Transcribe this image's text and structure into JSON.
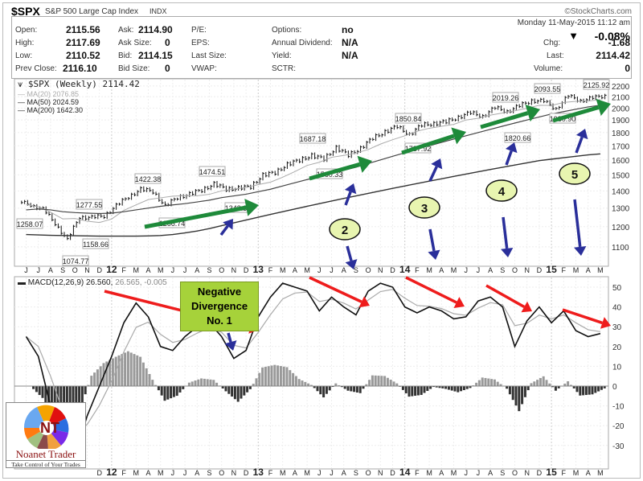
{
  "header": {
    "symbol": "$SPX",
    "name": "S&P 500 Large Cap Index",
    "exchange": "INDX",
    "credit": "©StockCharts.com",
    "datetime": "Monday 11-May-2015 11:12 am",
    "change_pct": "-0.08%",
    "change_direction_icon": "triangle-down-icon"
  },
  "quote": {
    "col1": [
      {
        "label": "Open:",
        "value": "2115.56"
      },
      {
        "label": "High:",
        "value": "2117.69"
      },
      {
        "label": "Low:",
        "value": "2110.52"
      },
      {
        "label": "Prev Close:",
        "value": "2116.10"
      }
    ],
    "col2": [
      {
        "label": "Ask:",
        "value": "2114.90"
      },
      {
        "label": "Ask Size:",
        "value": "0"
      },
      {
        "label": "Bid:",
        "value": "2114.15"
      },
      {
        "label": "Bid Size:",
        "value": "0"
      }
    ],
    "col3": [
      {
        "label": "P/E:"
      },
      {
        "label": "EPS:"
      },
      {
        "label": "Last Size:"
      },
      {
        "label": "VWAP:"
      }
    ],
    "col4": [
      {
        "label": "Options:",
        "value": "no"
      },
      {
        "label": "Annual Dividend:",
        "value": "N/A"
      },
      {
        "label": "Yield:",
        "value": "N/A"
      },
      {
        "label": "SCTR:",
        "value": ""
      }
    ],
    "right": [
      {
        "label": "Chg:",
        "value": "-1.68"
      },
      {
        "label": "Last:",
        "value": "2114.42"
      },
      {
        "label": "Volume:",
        "value": "0"
      }
    ]
  },
  "legend": {
    "price": "$SPX (Weekly) 2114.42",
    "ma20": "MA(20) 2076.85",
    "ma50": "MA(50) 2024.59",
    "ma200": "MA(200) 1642.30",
    "macd": "MACD(12,26,9) 26.560,",
    "macd_signal": "26.565,",
    "macd_hist": "-0.005"
  },
  "annotations": {
    "neg_div_line1": "Negative",
    "neg_div_line2": "Divergence",
    "neg_div_line3": "No. 1",
    "n2": "2",
    "n3": "3",
    "n4": "4",
    "n5": "5",
    "peaks": [
      "1258.07",
      "1277.55",
      "1158.66",
      "1074.77",
      "1422.38",
      "1474.51",
      "1266.74",
      "1343.35",
      "1687.18",
      "1560.33",
      "1850.84",
      "1737.92",
      "2019.26",
      "1820.66",
      "2093.55",
      "1980.90",
      "2125.92"
    ]
  },
  "logo": {
    "name": "Noanet Trader",
    "tagline": "Take Control of Your Trades",
    "initials": "NT"
  },
  "colors": {
    "green_arrow": "#1e8a3a",
    "blue_arrow": "#2a2f9a",
    "red_arrow": "#ee1c1c",
    "callout": "#a6d23a",
    "circle": "#e8f5b0"
  },
  "chart_data": [
    {
      "type": "bar",
      "title": "$SPX (Weekly)",
      "scale": "log",
      "ylim": [
        1020,
        2240
      ],
      "yticks": [
        "2200",
        "2100",
        "2000",
        "1900",
        "1800",
        "1700",
        "1600",
        "1500",
        "1400",
        "1300",
        "1200",
        "1100"
      ],
      "x_labels": [
        "J",
        "J",
        "A",
        "S",
        "O",
        "N",
        "D",
        "12",
        "F",
        "M",
        "A",
        "M",
        "J",
        "J",
        "A",
        "S",
        "O",
        "N",
        "D",
        "13",
        "F",
        "M",
        "A",
        "M",
        "J",
        "J",
        "A",
        "S",
        "O",
        "N",
        "D",
        "14",
        "F",
        "M",
        "A",
        "M",
        "J",
        "J",
        "A",
        "S",
        "O",
        "N",
        "D",
        "15",
        "F",
        "M",
        "A",
        "M"
      ],
      "close": [
        1321,
        1292,
        1219,
        1131,
        1253,
        1247,
        1258,
        1312,
        1366,
        1408,
        1398,
        1310,
        1362,
        1379,
        1406,
        1441,
        1412,
        1416,
        1426,
        1498,
        1515,
        1569,
        1598,
        1631,
        1606,
        1686,
        1633,
        1682,
        1757,
        1806,
        1848,
        1783,
        1859,
        1872,
        1884,
        1924,
        1960,
        1931,
        2003,
        1972,
        2018,
        2068,
        2059,
        1995,
        2105,
        2068,
        2086,
        2114
      ],
      "ma50": [
        1290,
        1295,
        1290,
        1280,
        1275,
        1272,
        1270,
        1272,
        1280,
        1290,
        1300,
        1310,
        1318,
        1325,
        1335,
        1345,
        1360,
        1370,
        1380,
        1395,
        1410,
        1430,
        1450,
        1470,
        1490,
        1510,
        1530,
        1550,
        1575,
        1600,
        1625,
        1650,
        1675,
        1700,
        1725,
        1750,
        1775,
        1800,
        1825,
        1850,
        1875,
        1900,
        1925,
        1950,
        1970,
        1990,
        2010,
        2025
      ],
      "ma200": [
        1160,
        1158,
        1156,
        1155,
        1154,
        1153,
        1152,
        1152,
        1152,
        1152,
        1153,
        1155,
        1160,
        1168,
        1178,
        1190,
        1205,
        1220,
        1235,
        1250,
        1265,
        1280,
        1295,
        1310,
        1325,
        1340,
        1355,
        1370,
        1385,
        1400,
        1415,
        1430,
        1445,
        1460,
        1475,
        1490,
        1505,
        1520,
        1535,
        1550,
        1565,
        1580,
        1595,
        1605,
        1615,
        1625,
        1635,
        1642
      ]
    },
    {
      "type": "line",
      "title": "MACD(12,26,9)",
      "ylim": [
        -40,
        55
      ],
      "yticks": [
        "50",
        "40",
        "30",
        "20",
        "10",
        "0",
        "-10",
        "-20",
        "-30"
      ],
      "macd": [
        25,
        15,
        -10,
        -30,
        -35,
        -15,
        0,
        15,
        32,
        42,
        35,
        20,
        18,
        25,
        30,
        32,
        25,
        14,
        18,
        35,
        45,
        52,
        50,
        48,
        38,
        45,
        40,
        36,
        48,
        52,
        50,
        40,
        37,
        40,
        38,
        34,
        35,
        43,
        45,
        40,
        20,
        33,
        40,
        32,
        38,
        28,
        25,
        26.56
      ]
    }
  ]
}
